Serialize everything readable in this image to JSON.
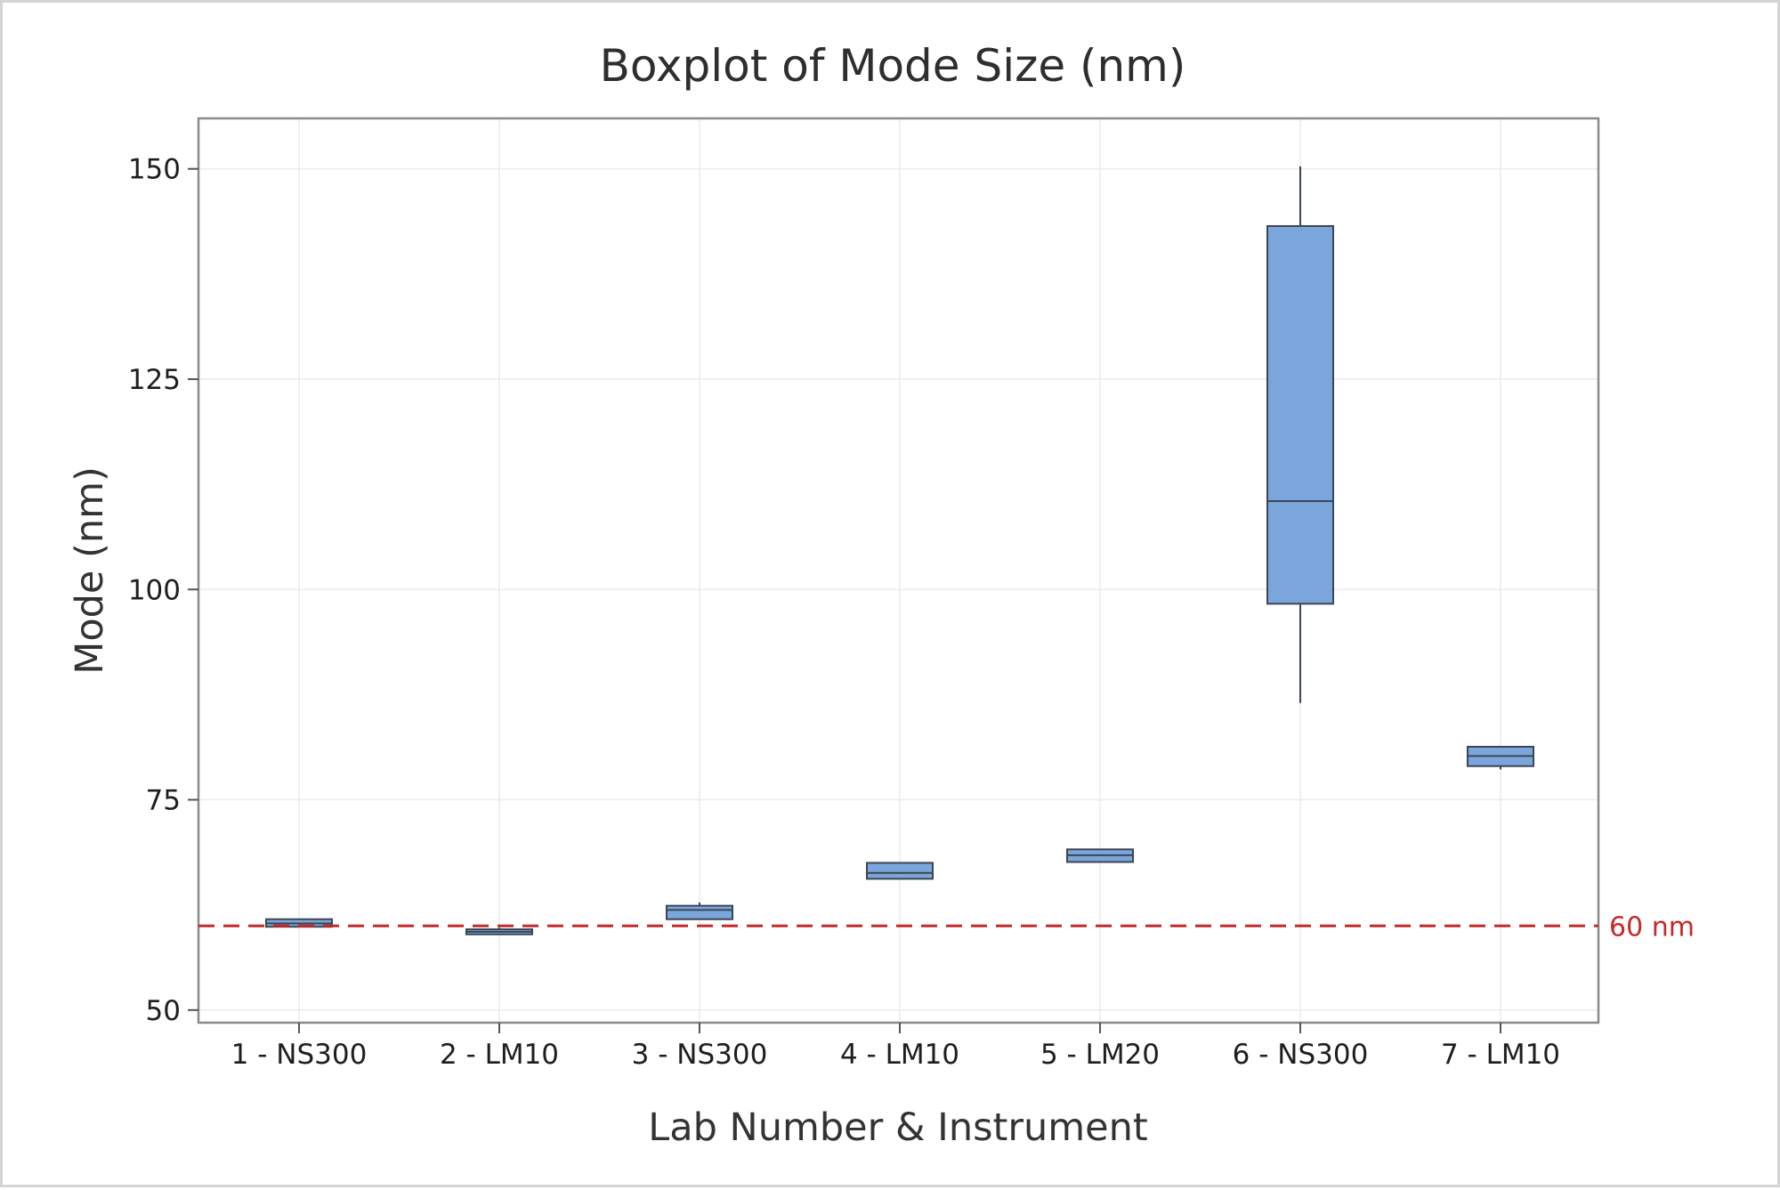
{
  "chart_data": {
    "type": "boxplot",
    "title": "Boxplot of Mode Size (nm)",
    "xlabel": "Lab Number & Instrument",
    "ylabel": "Mode (nm)",
    "ylim": [
      48.5,
      156
    ],
    "yticks": [
      50,
      75,
      100,
      125,
      150
    ],
    "grid": true,
    "categories": [
      "1 - NS300",
      "2 - LM10",
      "3 - NS300",
      "4 - LM10",
      "5 - LM20",
      "6 - NS300",
      "7 - LM10"
    ],
    "boxes": [
      {
        "category": "1 - NS300",
        "min": 59.9,
        "q1": 59.9,
        "median": 60.3,
        "q3": 60.8,
        "max": 60.8
      },
      {
        "category": "2 - LM10",
        "min": 59.0,
        "q1": 59.0,
        "median": 59.3,
        "q3": 59.6,
        "max": 59.8
      },
      {
        "category": "3 - NS300",
        "min": 60.8,
        "q1": 60.8,
        "median": 61.9,
        "q3": 62.4,
        "max": 62.8
      },
      {
        "category": "4 - LM10",
        "min": 65.6,
        "q1": 65.6,
        "median": 66.3,
        "q3": 67.5,
        "max": 67.5
      },
      {
        "category": "5 - LM20",
        "min": 67.6,
        "q1": 67.6,
        "median": 68.4,
        "q3": 69.1,
        "max": 69.1
      },
      {
        "category": "6 - NS300",
        "min": 86.5,
        "q1": 98.3,
        "median": 110.5,
        "q3": 143.2,
        "max": 150.3
      },
      {
        "category": "7 - LM10",
        "min": 78.6,
        "q1": 79.0,
        "median": 80.2,
        "q3": 81.3,
        "max": 81.3
      }
    ],
    "reference_line": {
      "value": 60,
      "label": "60 nm",
      "color": "#c62828",
      "style": "dashed"
    },
    "box_fill": "#7aa6dc",
    "box_stroke": "#3b4654"
  }
}
